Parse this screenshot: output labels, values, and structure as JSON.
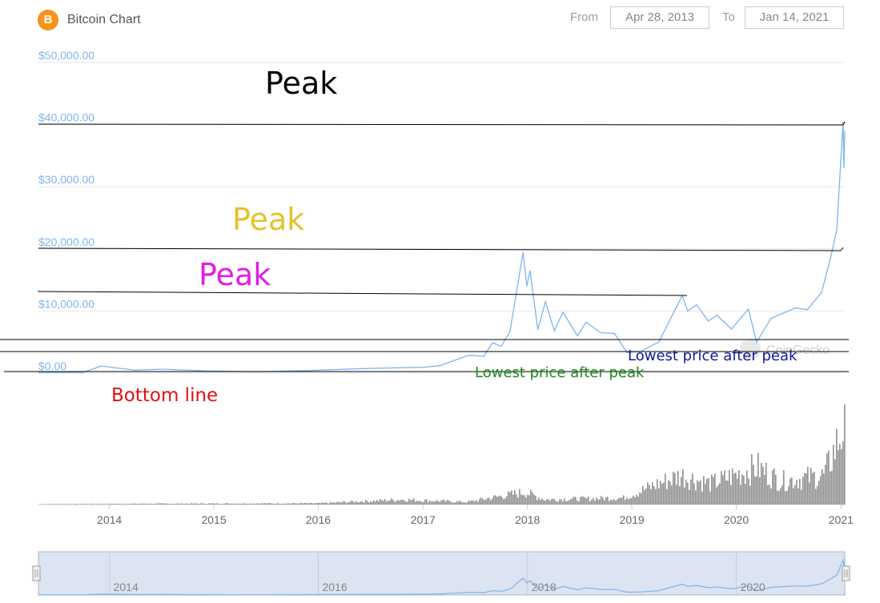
{
  "header": {
    "logo_glyph": "B",
    "logo_icon": "bitcoin-icon",
    "title": "Bitcoin Chart",
    "from_label": "From",
    "from_value": "Apr 28, 2013",
    "to_label": "To",
    "to_value": "Jan 14, 2021"
  },
  "chart_data": {
    "type": "line",
    "title": "Bitcoin Chart",
    "xlabel": "",
    "ylabel": "",
    "ylim": [
      0,
      50000
    ],
    "y_ticks": [
      "$50,000.00",
      "$40,000.00",
      "$30,000.00",
      "$20,000.00",
      "$10,000.00",
      "$0.00"
    ],
    "y_tick_values": [
      50000,
      40000,
      30000,
      20000,
      10000,
      0
    ],
    "x_ticks": [
      "2014",
      "2015",
      "2016",
      "2017",
      "2018",
      "2019",
      "2020",
      "2021"
    ],
    "x_tick_values": [
      "2014-01-01",
      "2015-01-01",
      "2016-01-01",
      "2017-01-01",
      "2018-01-01",
      "2019-01-01",
      "2020-01-01",
      "2021-01-01"
    ],
    "grid": true,
    "watermark": "CoinGecko",
    "series": [
      {
        "points": [
          [
            "2013-04-28",
            135
          ],
          [
            "2013-10-01",
            125
          ],
          [
            "2013-12-04",
            1150
          ],
          [
            "2014-01-15",
            900
          ],
          [
            "2014-04-01",
            480
          ],
          [
            "2014-07-01",
            640
          ],
          [
            "2014-12-01",
            380
          ],
          [
            "2015-06-01",
            230
          ],
          [
            "2015-12-01",
            430
          ],
          [
            "2016-06-15",
            750
          ],
          [
            "2016-12-31",
            960
          ],
          [
            "2017-03-01",
            1200
          ],
          [
            "2017-06-10",
            2900
          ],
          [
            "2017-08-01",
            2700
          ],
          [
            "2017-09-01",
            4900
          ],
          [
            "2017-10-01",
            4300
          ],
          [
            "2017-11-01",
            6700
          ],
          [
            "2017-12-17",
            19500
          ],
          [
            "2017-12-30",
            14000
          ],
          [
            "2018-01-10",
            16500
          ],
          [
            "2018-02-06",
            7000
          ],
          [
            "2018-03-05",
            11500
          ],
          [
            "2018-04-05",
            6800
          ],
          [
            "2018-05-05",
            9800
          ],
          [
            "2018-06-25",
            6000
          ],
          [
            "2018-07-25",
            8200
          ],
          [
            "2018-09-15",
            6500
          ],
          [
            "2018-11-01",
            6400
          ],
          [
            "2018-12-15",
            3300
          ],
          [
            "2019-02-01",
            3500
          ],
          [
            "2019-04-05",
            5000
          ],
          [
            "2019-06-26",
            12500
          ],
          [
            "2019-07-15",
            10000
          ],
          [
            "2019-08-15",
            11000
          ],
          [
            "2019-09-25",
            8400
          ],
          [
            "2019-10-26",
            9300
          ],
          [
            "2019-12-15",
            7100
          ],
          [
            "2020-02-12",
            10300
          ],
          [
            "2020-03-12",
            5000
          ],
          [
            "2020-05-01",
            8800
          ],
          [
            "2020-07-25",
            10500
          ],
          [
            "2020-09-05",
            10200
          ],
          [
            "2020-10-25",
            13000
          ],
          [
            "2020-11-25",
            18500
          ],
          [
            "2020-12-17",
            23000
          ],
          [
            "2021-01-08",
            40500
          ],
          [
            "2021-01-11",
            33000
          ],
          [
            "2021-01-14",
            39000
          ]
        ]
      }
    ],
    "volume_bars": "gray volume histogram below price chart",
    "volume_levels": [
      [
        "2013-04-28",
        0.005
      ],
      [
        "2014-06-01",
        0.01
      ],
      [
        "2016-01-01",
        0.015
      ],
      [
        "2016-10-15",
        0.06
      ],
      [
        "2017-06-01",
        0.03
      ],
      [
        "2017-12-20",
        0.15
      ],
      [
        "2018-03-01",
        0.06
      ],
      [
        "2018-12-01",
        0.08
      ],
      [
        "2019-04-01",
        0.25
      ],
      [
        "2019-06-20",
        0.35
      ],
      [
        "2019-10-01",
        0.25
      ],
      [
        "2020-03-12",
        0.45
      ],
      [
        "2020-06-01",
        0.28
      ],
      [
        "2020-11-01",
        0.35
      ],
      [
        "2021-01-04",
        0.9
      ],
      [
        "2021-01-11",
        1.0
      ],
      [
        "2021-01-14",
        0.65
      ]
    ]
  },
  "annotations": {
    "peak_top": {
      "text": "Peak",
      "color": "#000000"
    },
    "peak_mid": {
      "text": "Peak",
      "color": "#e6c02c"
    },
    "peak_low": {
      "text": "Peak",
      "color": "#e21de0"
    },
    "lowest_after_2018": {
      "text": "Lowest price after peak",
      "color": "#1c8a1c"
    },
    "lowest_after_2020": {
      "text": "Lowest price after peak",
      "color": "#0d1a99"
    },
    "bottom_line": {
      "text": "Bottom line",
      "color": "#e01010"
    }
  },
  "navigator": {
    "x_ticks": [
      "2014",
      "2016",
      "2018",
      "2020"
    ],
    "x_tick_values": [
      "2014-01-01",
      "2016-01-01",
      "2018-01-01",
      "2020-01-01"
    ]
  },
  "colors": {
    "line": "#7cb5ec",
    "grid": "#e6e6e6",
    "axis_text": "#7cb5ec",
    "x_text": "#666666",
    "volume": "#909090",
    "navigator_fill": "#dce3f1",
    "navigator_border": "#aab5cc"
  }
}
